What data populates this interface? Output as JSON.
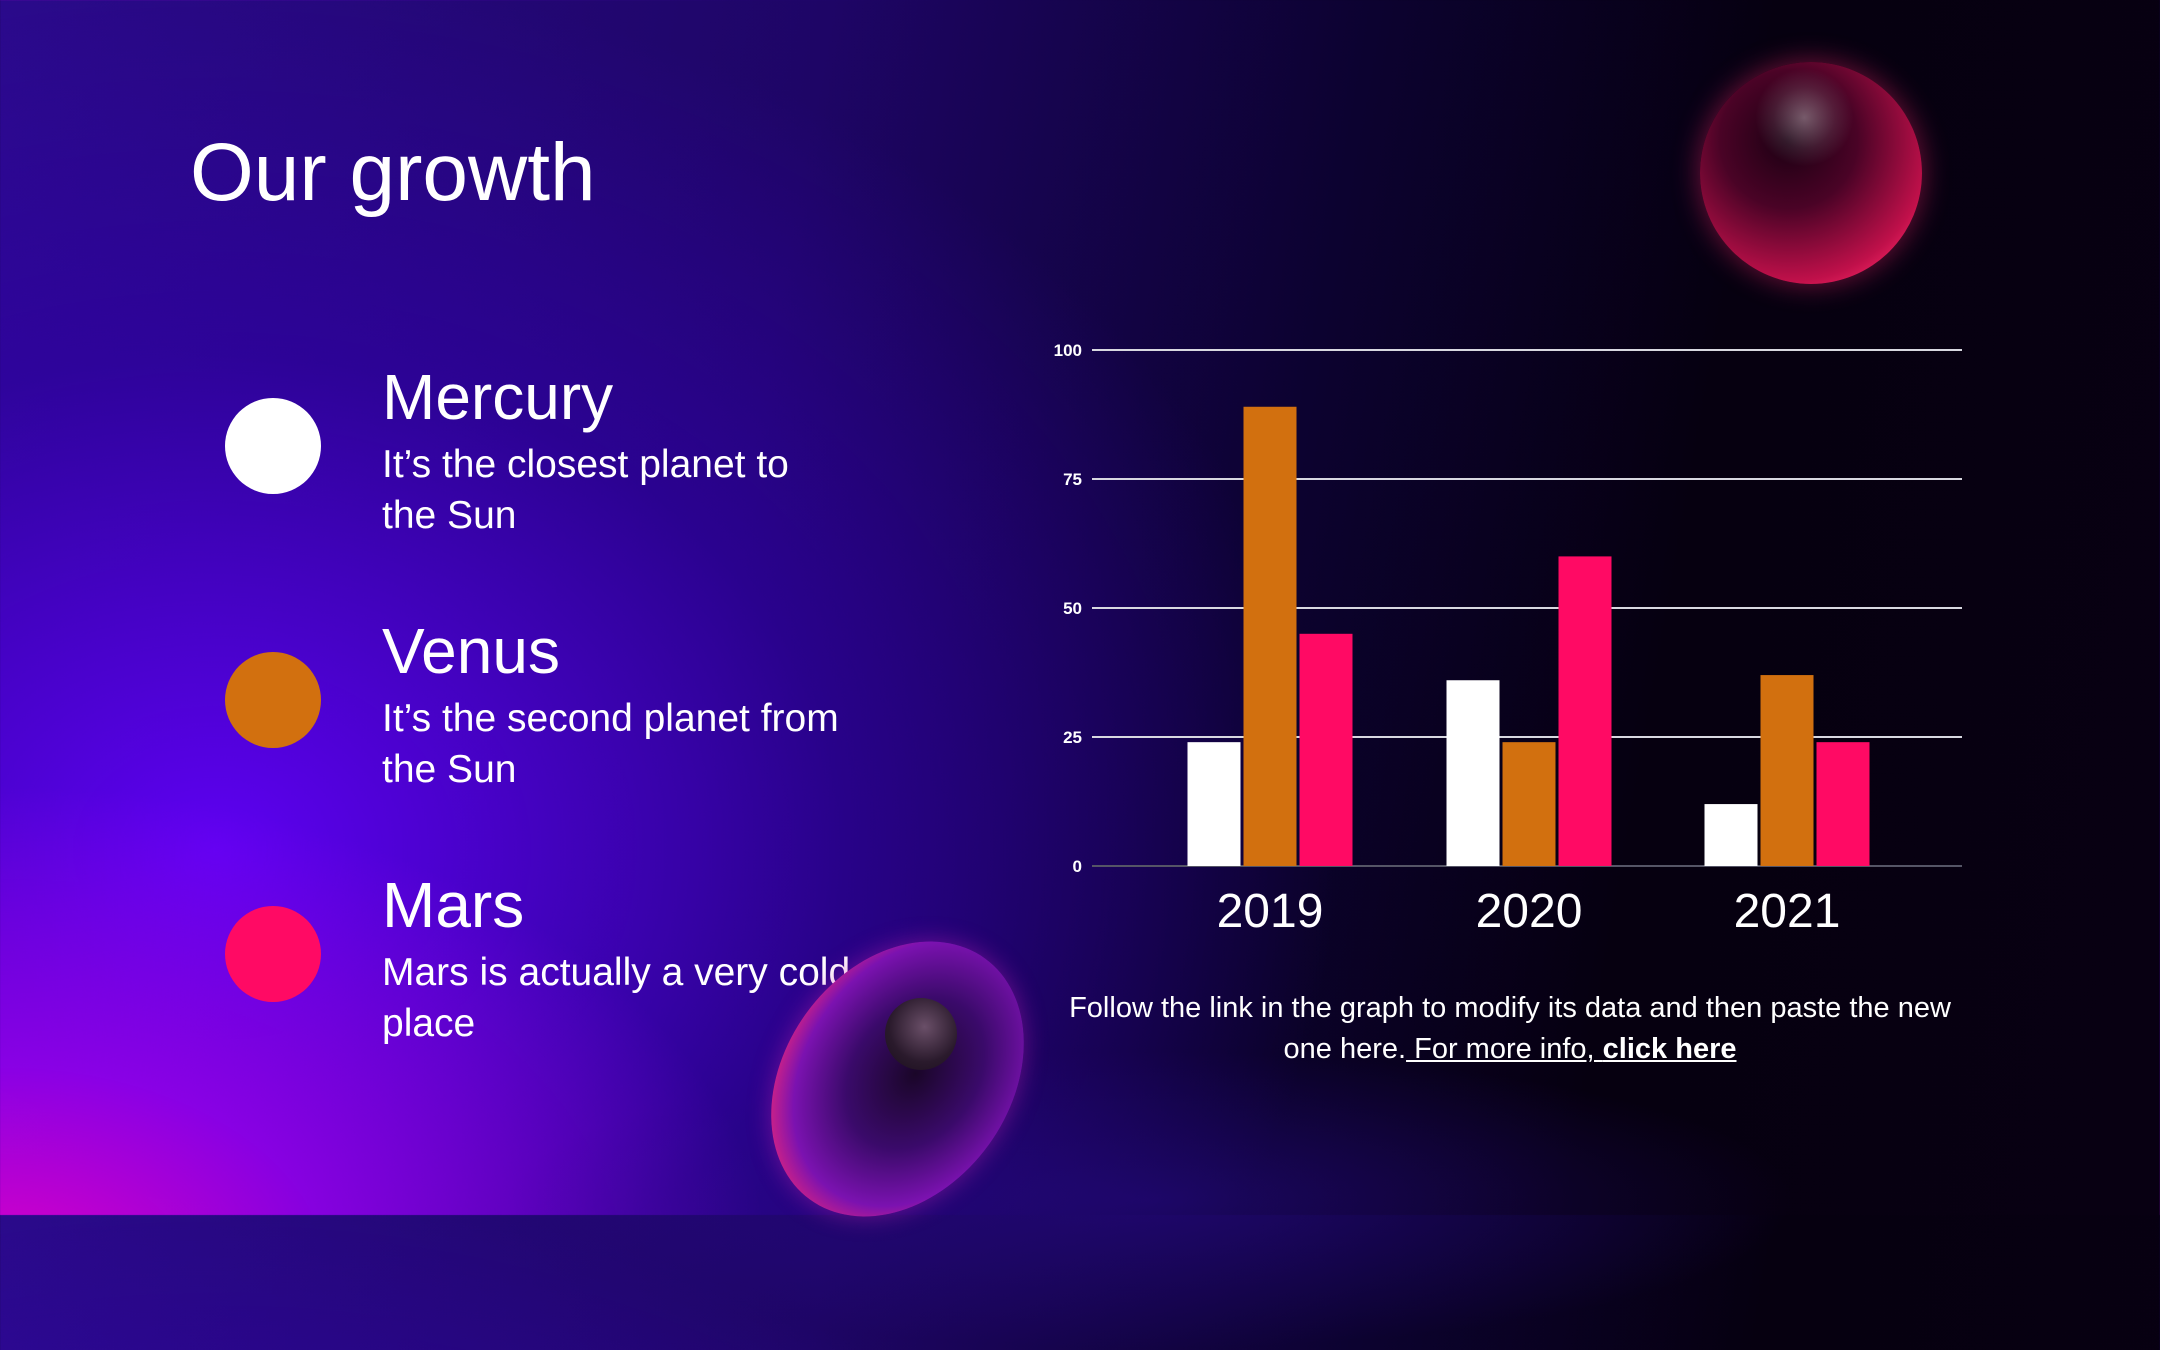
{
  "slide": {
    "title": "Our growth"
  },
  "legend_items": [
    {
      "name": "Mercury",
      "description": "It’s the closest planet to the Sun",
      "color": "#ffffff"
    },
    {
      "name": "Venus",
      "description": "It’s the second planet from the Sun",
      "color": "#d2700f"
    },
    {
      "name": "Mars",
      "description": "Mars is actually a very cold place",
      "color": "#ff0a64"
    }
  ],
  "caption": {
    "text": "Follow the link in the graph to modify its data and then paste the new one here.",
    "link_prefix": " For more info, ",
    "link_bold": "click here"
  },
  "chart_data": {
    "type": "bar",
    "categories": [
      "2019",
      "2020",
      "2021"
    ],
    "series": [
      {
        "name": "Mercury",
        "color": "#ffffff",
        "values": [
          24,
          36,
          12
        ]
      },
      {
        "name": "Venus",
        "color": "#d2700f",
        "values": [
          89,
          24,
          37
        ]
      },
      {
        "name": "Mars",
        "color": "#ff0a64",
        "values": [
          45,
          60,
          24
        ]
      }
    ],
    "yticks": [
      0,
      25,
      50,
      75,
      100
    ],
    "ylim": [
      0,
      100
    ],
    "grid": true
  }
}
